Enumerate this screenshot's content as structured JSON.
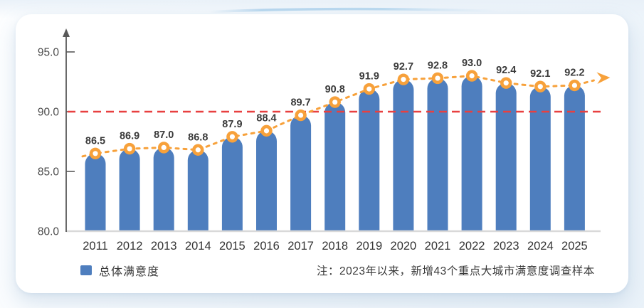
{
  "legend": {
    "label": "总体满意度",
    "swatch_color": "#4E7EBE"
  },
  "note": {
    "text": "注：2023年以来，新增43个重点大城市满意度调查样本"
  },
  "chart_data": {
    "type": "bar",
    "title": "",
    "xlabel": "",
    "ylabel": "",
    "categories": [
      "2011",
      "2012",
      "2013",
      "2014",
      "2015",
      "2016",
      "2017",
      "2018",
      "2019",
      "2020",
      "2021",
      "2022",
      "2023",
      "2024",
      "2025"
    ],
    "series": [
      {
        "name": "总体满意度",
        "type": "bar-with-trend-line",
        "values": [
          86.5,
          86.9,
          87.0,
          86.8,
          87.9,
          88.4,
          89.7,
          90.8,
          91.9,
          92.7,
          92.8,
          93.0,
          92.4,
          92.1,
          92.2
        ]
      }
    ],
    "value_label_format": "0.0",
    "ylim": [
      80,
      95.6
    ],
    "yticks": [
      {
        "value": 95,
        "label": "95.0"
      },
      {
        "value": 90,
        "label": "90.0"
      },
      {
        "value": 85,
        "label": "85.0"
      },
      {
        "value": 80,
        "label": "80.0"
      }
    ],
    "reference_line": {
      "value": 90.0,
      "style": "dashed",
      "color": "#E84040"
    },
    "grid": false,
    "legend_position": "bottom-left",
    "colors": {
      "bar": "#4E7EBE",
      "trend_line": "#F7A13B",
      "marker_ring": "#F7A13B",
      "marker_center": "#FFFFFF",
      "reference_line": "#E84040",
      "y_axis": "#595959",
      "x_baseline": "#D9D9D9",
      "value_text": "#3A3A3A",
      "tick_text": "#4A4A4A",
      "year_text": "#333333"
    }
  }
}
